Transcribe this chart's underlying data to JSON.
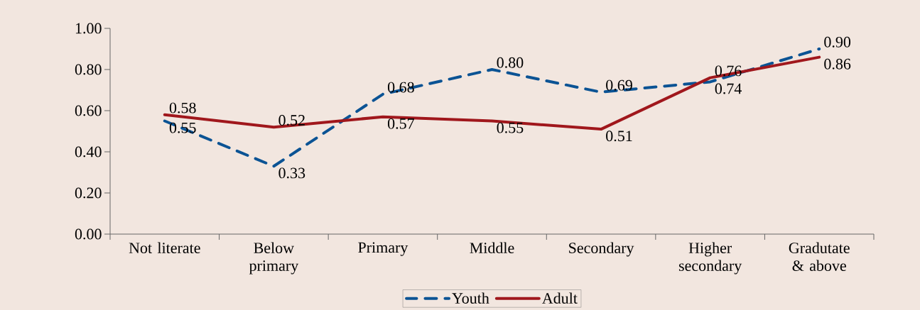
{
  "chart_data": {
    "type": "line",
    "categories": [
      "Not literate",
      "Below primary",
      "Primary",
      "Middle",
      "Secondary",
      "Higher secondary",
      "Gradutate & above"
    ],
    "series": [
      {
        "name": "Youth",
        "color": "#0b5394",
        "line_style": "dashed",
        "values": [
          0.55,
          0.33,
          0.68,
          0.8,
          0.69,
          0.74,
          0.9
        ],
        "value_labels": [
          "0.55",
          "0.33",
          "0.68",
          "0.80",
          "0.69",
          "0.74",
          "0.90"
        ]
      },
      {
        "name": "Adult",
        "color": "#a0171c",
        "line_style": "solid",
        "values": [
          0.58,
          0.52,
          0.57,
          0.55,
          0.51,
          0.76,
          0.86
        ],
        "value_labels": [
          "0.58",
          "0.52",
          "0.57",
          "0.55",
          "0.51",
          "0.76",
          "0.86"
        ]
      }
    ],
    "ylim": [
      0,
      1
    ],
    "yticks": [
      {
        "value": 0,
        "label": "0.00"
      },
      {
        "value": 0.2,
        "label": "0.20"
      },
      {
        "value": 0.4,
        "label": "0.40"
      },
      {
        "value": 0.6,
        "label": "0.60"
      },
      {
        "value": 0.8,
        "label": "0.80"
      },
      {
        "value": 1,
        "label": "1.00"
      }
    ],
    "grid": false,
    "legend": "bottom"
  }
}
